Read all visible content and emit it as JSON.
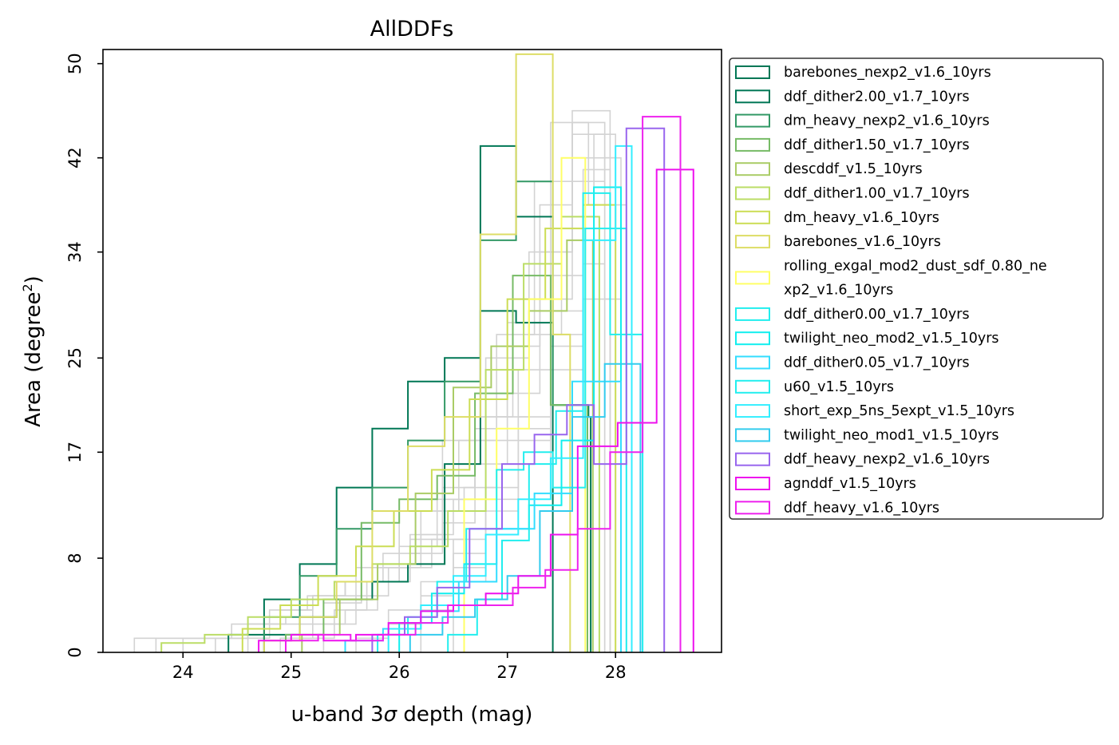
{
  "chart_data": {
    "type": "histogram",
    "title": "AllDDFs",
    "xlabel_prefix": "u-band 3",
    "xlabel_sigma": "σ",
    "xlabel_suffix": " depth (mag)",
    "ylabel_prefix": "Area (degree",
    "ylabel_sup": "2",
    "ylabel_suffix": ")",
    "xlim": [
      23.26,
      28.98
    ],
    "ylim": [
      0,
      51.2
    ],
    "x_ticks": [
      24,
      25,
      26,
      27,
      28
    ],
    "y_ticks": [
      0,
      8,
      17,
      25,
      34,
      42,
      50
    ],
    "legend_position": "outside-right",
    "background_color": "#d3d3d3",
    "background_series": [
      {
        "edges": [
          23.55,
          23.9,
          24.25,
          24.6,
          24.95,
          25.3,
          25.65,
          26.0,
          26.35,
          26.7,
          27.05,
          27.4,
          27.75,
          28.1
        ],
        "values": [
          1.2,
          1.2,
          1.2,
          2.4,
          3.0,
          4.2,
          6.0,
          9.0,
          13.0,
          20.0,
          30.0,
          45.0,
          38.0
        ]
      },
      {
        "edges": [
          23.75,
          24.1,
          24.45,
          24.8,
          25.15,
          25.5,
          25.85,
          26.2,
          26.55,
          26.9,
          27.25,
          27.6,
          27.95
        ],
        "values": [
          1.2,
          1.2,
          2.4,
          3.6,
          4.8,
          6.0,
          8.4,
          12.0,
          18.0,
          27.0,
          40.0,
          46.0
        ]
      },
      {
        "edges": [
          24.3,
          24.6,
          24.9,
          25.2,
          25.5,
          25.8,
          26.1,
          26.4,
          26.7,
          27.0,
          27.3,
          27.6,
          27.9,
          28.05
        ],
        "values": [
          1.2,
          2.4,
          3.6,
          4.8,
          6.0,
          7.2,
          10.0,
          14.0,
          20.0,
          28.0,
          38.0,
          44.0,
          30.0
        ]
      },
      {
        "edges": [
          24.6,
          24.9,
          25.2,
          25.5,
          25.8,
          26.1,
          26.4,
          26.7,
          27.0,
          27.3,
          27.6,
          27.9
        ],
        "values": [
          2.4,
          3.6,
          4.8,
          6.0,
          7.2,
          9.6,
          13.0,
          19.0,
          26.0,
          34.0,
          45.0
        ]
      },
      {
        "edges": [
          24.9,
          25.2,
          25.5,
          25.8,
          26.1,
          26.4,
          26.7,
          27.0,
          27.3,
          27.6,
          27.9,
          28.05
        ],
        "values": [
          1.2,
          2.4,
          3.6,
          6.0,
          8.4,
          11.0,
          16.0,
          22.0,
          30.0,
          40.0,
          42.0
        ]
      },
      {
        "edges": [
          25.1,
          25.4,
          25.7,
          26.0,
          26.3,
          26.6,
          26.9,
          27.2,
          27.5,
          27.8,
          28.0
        ],
        "values": [
          1.2,
          3.6,
          6.0,
          7.2,
          9.6,
          14.0,
          20.0,
          27.0,
          36.0,
          44.0
        ]
      },
      {
        "edges": [
          25.3,
          25.6,
          25.9,
          26.2,
          26.5,
          26.8,
          27.1,
          27.4,
          27.7,
          27.95
        ],
        "values": [
          2.4,
          4.8,
          7.2,
          10.0,
          13.0,
          18.0,
          24.0,
          32.0,
          41.0
        ]
      },
      {
        "edges": [
          24.0,
          24.4,
          24.8,
          25.2,
          25.6,
          26.0,
          26.4,
          26.8,
          27.2,
          27.6,
          28.0
        ],
        "values": [
          1.2,
          1.2,
          2.4,
          4.8,
          7.2,
          12.0,
          18.0,
          25.0,
          34.0,
          42.0
        ]
      },
      {
        "edges": [
          25.6,
          25.9,
          26.2,
          26.5,
          26.8,
          27.1,
          27.4,
          27.7,
          27.95
        ],
        "values": [
          1.2,
          3.6,
          6.0,
          9.6,
          14.0,
          20.0,
          29.0,
          38.0
        ]
      },
      {
        "edges": [
          25.9,
          26.2,
          26.5,
          26.8,
          27.1,
          27.4,
          27.7,
          28.0
        ],
        "values": [
          2.4,
          4.8,
          8.4,
          13.0,
          19.0,
          27.0,
          36.0
        ]
      },
      {
        "edges": [
          26.2,
          26.5,
          26.8,
          27.1,
          27.4,
          27.7,
          27.9
        ],
        "values": [
          3.6,
          7.2,
          12.0,
          18.0,
          26.0,
          33.0
        ]
      },
      {
        "edges": [
          26.5,
          26.8,
          27.1,
          27.4,
          27.7,
          27.95
        ],
        "values": [
          6.0,
          10.0,
          16.0,
          24.0,
          30.0
        ]
      }
    ],
    "series": [
      {
        "name": "barebones_nexp2_v1.6_10yrs",
        "color": "#007755",
        "edges": [
          24.42,
          24.75,
          25.08,
          25.42,
          25.75,
          26.08,
          26.42,
          26.75,
          27.08,
          27.42
        ],
        "values": [
          1.5,
          4.5,
          7.5,
          14.0,
          19.0,
          23.0,
          25.0,
          43.0,
          37.0
        ]
      },
      {
        "name": "ddf_dither2.00_v1.7_10yrs",
        "color": "#007755",
        "edges": [
          24.75,
          25.08,
          25.42,
          25.75,
          26.08,
          26.42,
          26.75,
          27.08,
          27.42,
          27.75,
          27.77
        ],
        "values": [
          1.5,
          3.0,
          4.5,
          6.0,
          7.5,
          16.0,
          29.0,
          28.0,
          21.0,
          20.0
        ]
      },
      {
        "name": "dm_heavy_nexp2_v1.6_10yrs",
        "color": "#339966",
        "edges": [
          24.75,
          25.08,
          25.42,
          25.75,
          26.08,
          26.42,
          26.75,
          27.08,
          27.42,
          27.74
        ],
        "values": [
          3.0,
          6.5,
          10.5,
          14.0,
          18.0,
          23.0,
          35.0,
          40.0,
          21.0
        ]
      },
      {
        "name": "ddf_dither1.50_v1.7_10yrs",
        "color": "#77bb66",
        "edges": [
          24.95,
          25.3,
          25.65,
          26.0,
          26.35,
          26.7,
          27.05,
          27.4,
          27.74
        ],
        "values": [
          1.5,
          4.5,
          11.0,
          13.0,
          15.0,
          22.0,
          32.0,
          21.0
        ]
      },
      {
        "name": "descddf_v1.5_10yrs",
        "color": "#aacc66",
        "edges": [
          25.1,
          25.45,
          25.8,
          26.15,
          26.5,
          26.85,
          27.2,
          27.55,
          27.79
        ],
        "values": [
          1.5,
          4.5,
          7.5,
          13.5,
          22.5,
          26.0,
          29.0,
          35.0
        ]
      },
      {
        "name": "ddf_dither1.00_v1.7_10yrs",
        "color": "#bbdd66",
        "edges": [
          23.8,
          24.2,
          24.6,
          25.0,
          25.4,
          25.75,
          26.1,
          26.45,
          26.8,
          27.15,
          27.5,
          27.85
        ],
        "values": [
          0.8,
          1.5,
          3.0,
          4.5,
          6.0,
          7.5,
          9.0,
          12.0,
          24.0,
          33.0,
          37.0
        ]
      },
      {
        "name": "dm_heavy_v1.6_10yrs",
        "color": "#ccdd55",
        "edges": [
          24.55,
          24.9,
          25.25,
          25.6,
          25.95,
          26.3,
          26.65,
          27.0,
          27.35,
          27.7,
          28.0
        ],
        "values": [
          2.0,
          4.0,
          6.5,
          9.0,
          12.0,
          15.5,
          21.5,
          30.0,
          36.0,
          38.0
        ]
      },
      {
        "name": "barebones_v1.6_10yrs",
        "color": "#dddd66",
        "edges": [
          24.75,
          25.08,
          25.42,
          25.75,
          26.08,
          26.42,
          26.75,
          27.08,
          27.42,
          27.58
        ],
        "values": [
          1.0,
          3.0,
          6.0,
          12.0,
          17.5,
          20.0,
          35.5,
          50.8,
          27.0
        ]
      },
      {
        "name": "rolling_exgal_mod2_dust_sdf_0.80_nexp2_v1.6_10yrs",
        "name_line1": "rolling_exgal_mod2_dust_sdf_0.80_ne",
        "name_line2": "xp2_v1.6_10yrs",
        "color": "#ffff66",
        "edges": [
          26.6,
          26.9,
          27.2,
          27.5,
          27.72
        ],
        "values": [
          13.0,
          19.0,
          30.0,
          42.0
        ]
      },
      {
        "name": "ddf_dither0.00_v1.7_10yrs",
        "color": "#22eeee",
        "edges": [
          25.8,
          26.08,
          26.35,
          26.62,
          26.9,
          27.15,
          27.42,
          27.72,
          28.1
        ],
        "values": [
          1.5,
          3.0,
          6.0,
          10.5,
          15.5,
          17.0,
          14.0,
          36.0
        ]
      },
      {
        "name": "twilight_neo_mod2_v1.5_10yrs",
        "color": "#11eeee",
        "edges": [
          26.0,
          26.3,
          26.6,
          26.9,
          27.2,
          27.5,
          27.8,
          28.05
        ],
        "values": [
          2.5,
          5.0,
          7.5,
          10.5,
          12.5,
          18.0,
          39.5
        ]
      },
      {
        "name": "ddf_dither0.05_v1.7_10yrs",
        "color": "#33ddff",
        "edges": [
          25.5,
          25.85,
          26.2,
          26.55,
          26.9,
          27.25,
          27.6,
          28.05
        ],
        "values": [
          1.0,
          2.0,
          3.5,
          6.0,
          10.5,
          13.5,
          23.0
        ]
      },
      {
        "name": "u60_v1.5_10yrs",
        "color": "#22eeee",
        "edges": [
          26.45,
          26.72,
          26.95,
          27.2,
          27.45,
          27.7,
          27.95,
          28.25
        ],
        "values": [
          1.5,
          4.5,
          9.5,
          16.0,
          20.5,
          39.0,
          27.0
        ]
      },
      {
        "name": "short_exp_5ns_5expt_v1.5_10yrs",
        "color": "#33eeff",
        "edges": [
          25.9,
          26.2,
          26.5,
          26.8,
          27.1,
          27.4,
          27.7,
          28.0,
          28.15
        ],
        "values": [
          2.0,
          4.0,
          6.5,
          10.0,
          13.0,
          16.5,
          35.0,
          43.0
        ]
      },
      {
        "name": "twilight_neo_mod1_v1.5_10yrs",
        "color": "#33ccee",
        "edges": [
          26.1,
          26.4,
          26.7,
          27.0,
          27.3,
          27.6,
          27.9,
          28.23
        ],
        "values": [
          1.5,
          3.0,
          4.5,
          6.5,
          12.0,
          20.0,
          24.5
        ]
      },
      {
        "name": "ddf_heavy_nexp2_v1.6_10yrs",
        "color": "#9966ee",
        "edges": [
          25.75,
          26.05,
          26.35,
          26.65,
          26.95,
          27.25,
          27.55,
          27.8,
          28.1,
          28.45
        ],
        "values": [
          1.5,
          3.0,
          5.5,
          10.5,
          16.0,
          18.5,
          21.0,
          16.0,
          44.5
        ]
      },
      {
        "name": "agnddf_v1.5_10yrs",
        "color": "#ee11ee",
        "edges": [
          24.7,
          25.0,
          25.3,
          25.6,
          25.9,
          26.2,
          26.5,
          26.8,
          27.1,
          27.4,
          27.65,
          28.02,
          28.38,
          28.72
        ],
        "values": [
          1.0,
          1.5,
          1.0,
          1.5,
          2.5,
          3.5,
          4.0,
          5.0,
          6.5,
          10.0,
          17.5,
          19.5,
          41.0
        ]
      },
      {
        "name": "ddf_heavy_v1.6_10yrs",
        "color": "#ee22ee",
        "edges": [
          24.95,
          25.25,
          25.55,
          25.85,
          26.15,
          26.45,
          26.75,
          27.05,
          27.35,
          27.65,
          27.95,
          28.25,
          28.6
        ],
        "values": [
          1.0,
          1.5,
          1.0,
          1.5,
          2.5,
          4.0,
          4.0,
          5.5,
          7.0,
          10.5,
          17.0,
          45.5
        ]
      }
    ]
  }
}
